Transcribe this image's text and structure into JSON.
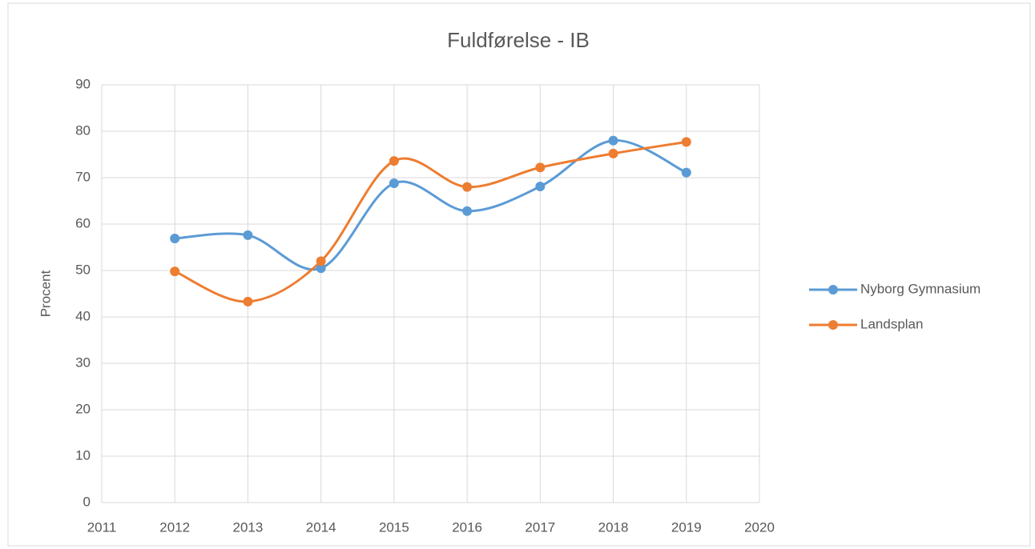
{
  "chart_data": {
    "type": "line",
    "title": "Fuldførelse - IB",
    "y_label": "Procent",
    "x": [
      2012,
      2013,
      2014,
      2015,
      2016,
      2017,
      2018,
      2019
    ],
    "series": [
      {
        "name": "Nyborg Gymnasium",
        "color": "#5b9bd5",
        "values": [
          56.9,
          57.6,
          50.5,
          68.8,
          62.8,
          68.1,
          78.0,
          71.1
        ]
      },
      {
        "name": "Landsplan",
        "color": "#ed7d31",
        "values": [
          49.8,
          43.3,
          52.0,
          73.6,
          68.0,
          72.2,
          75.2,
          77.7
        ]
      }
    ],
    "xlim": [
      2011,
      2020
    ],
    "xticks": [
      2011,
      2012,
      2013,
      2014,
      2015,
      2016,
      2017,
      2018,
      2019,
      2020
    ],
    "ylim": [
      0,
      90
    ],
    "yticks": [
      0,
      10,
      20,
      30,
      40,
      50,
      60,
      70,
      80,
      90
    ],
    "grid": true,
    "smooth": true,
    "legend": "right"
  }
}
